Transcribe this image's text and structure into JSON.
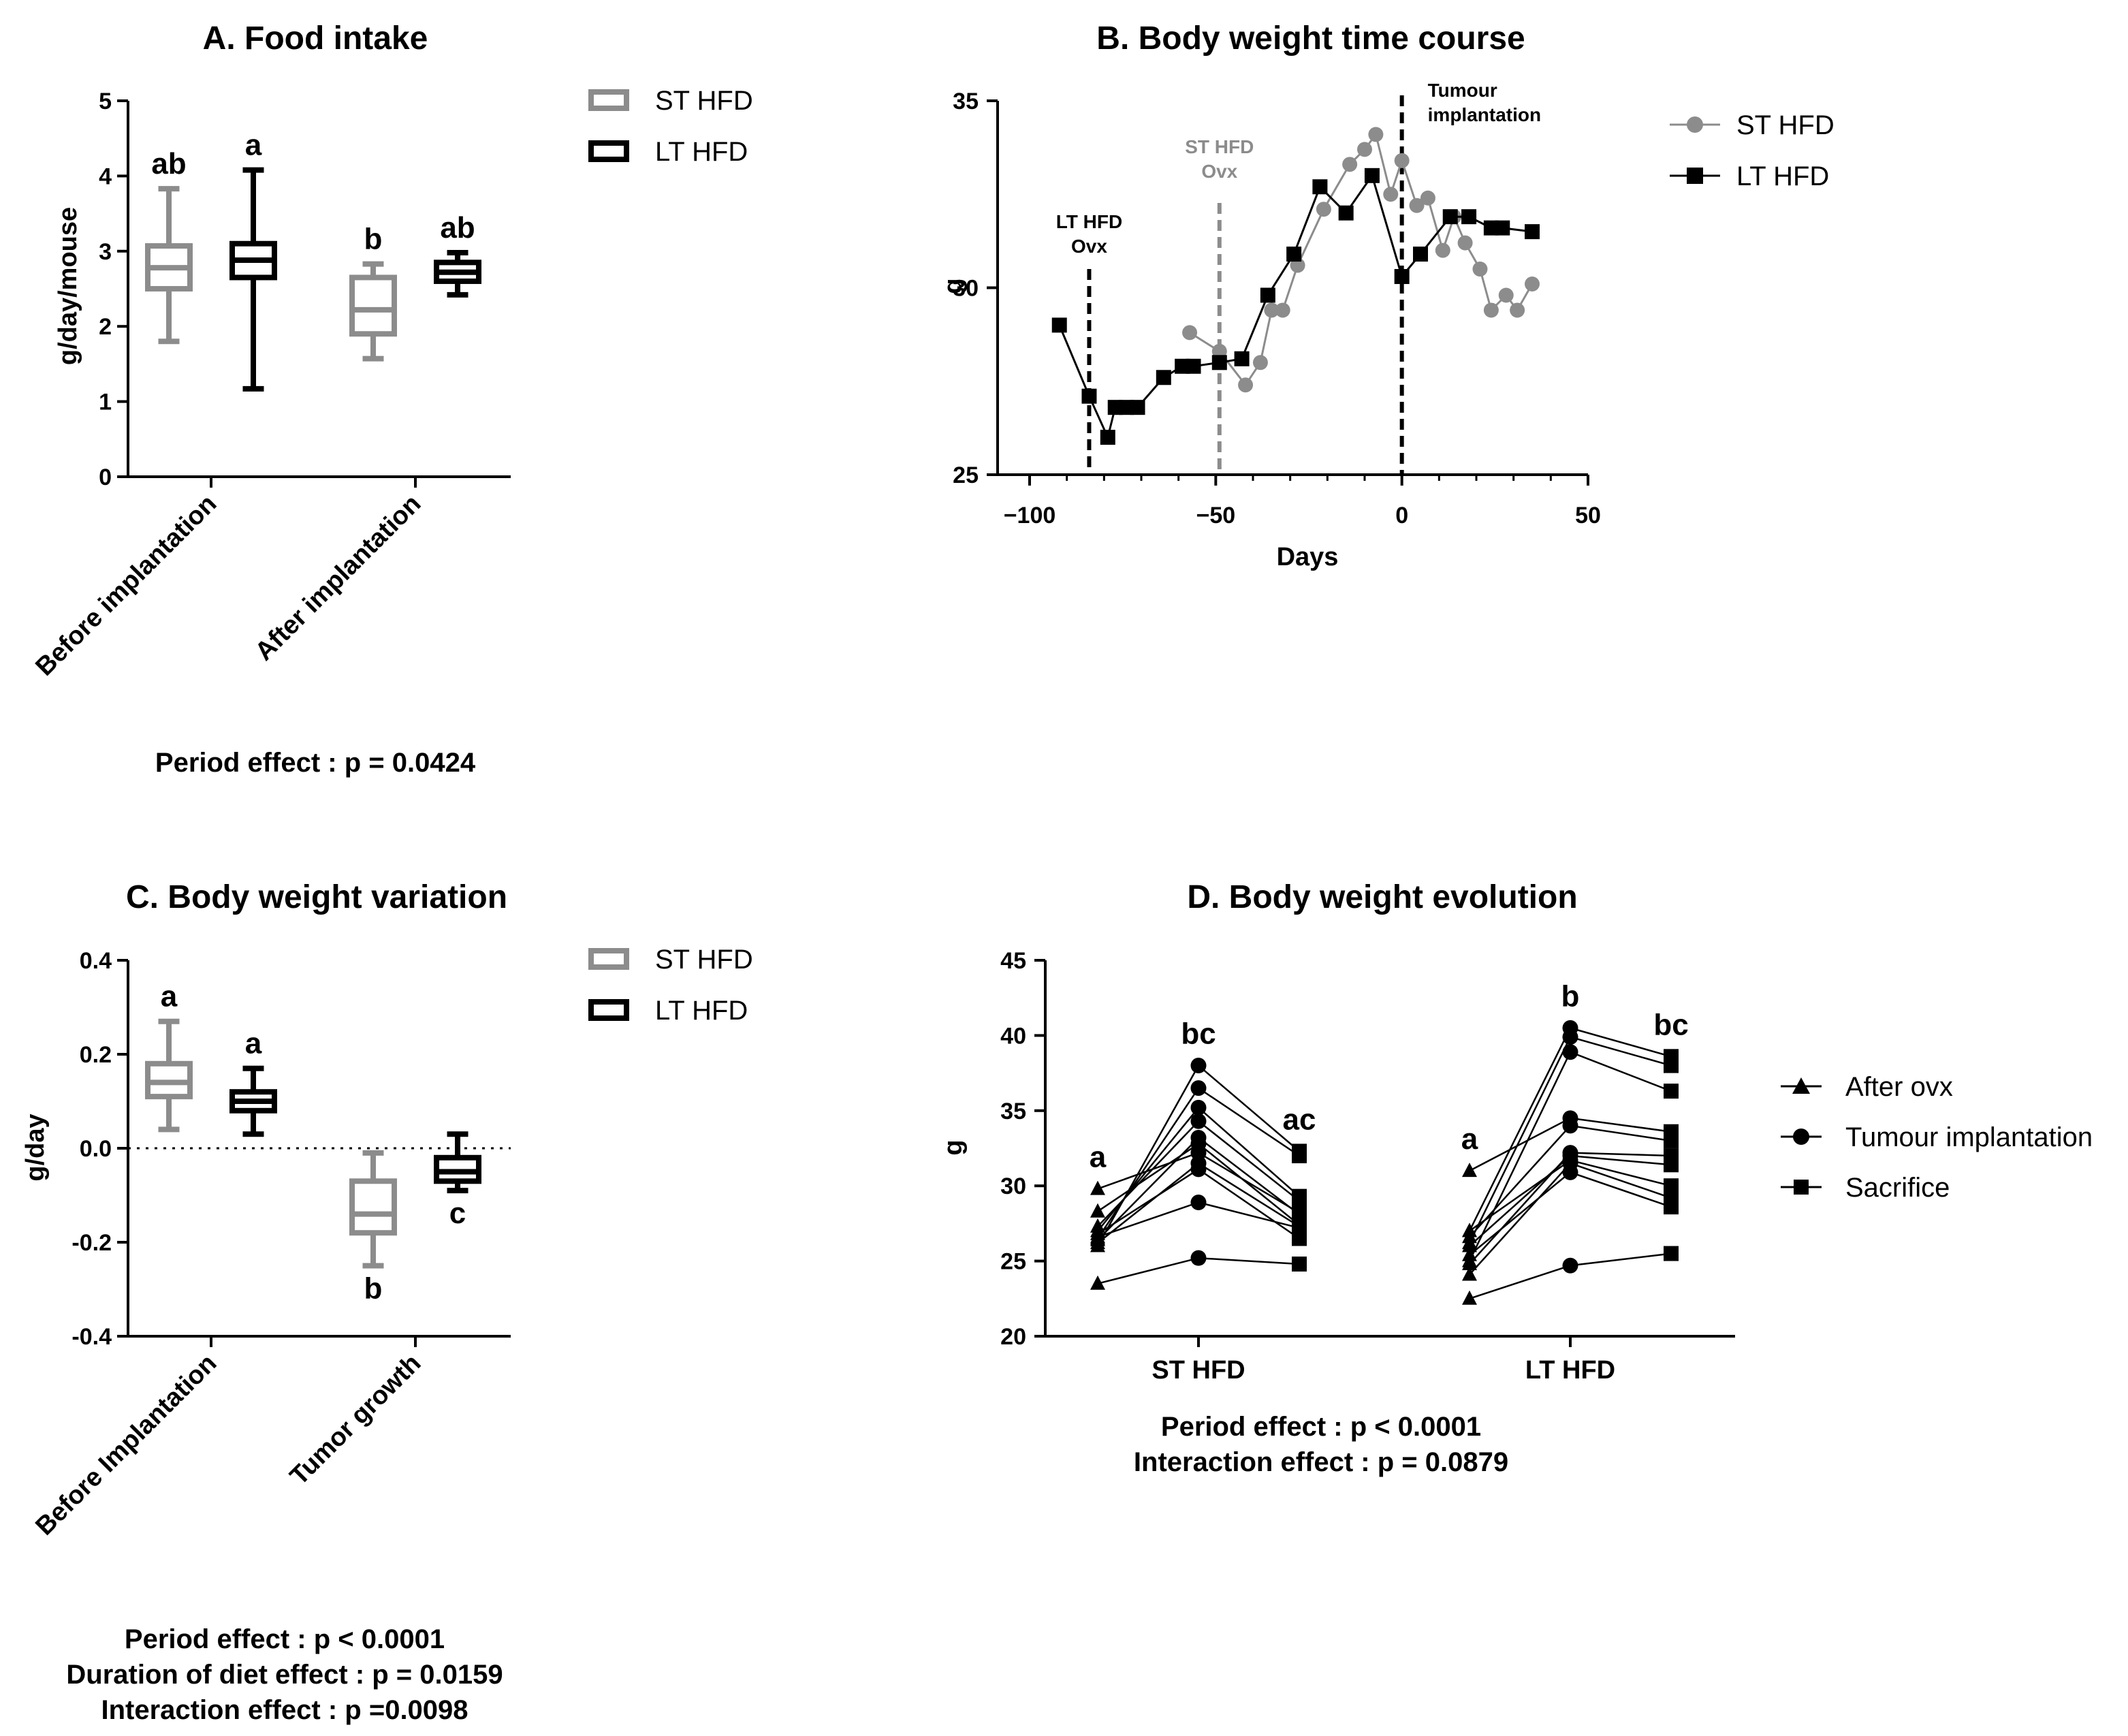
{
  "chart_data": [
    {
      "panel": "A",
      "type": "box",
      "title": "A. Food intake",
      "ylabel": "g/day/mouse",
      "ylim": [
        0,
        5
      ],
      "yticks": [
        "0",
        "1",
        "2",
        "3",
        "4",
        "5"
      ],
      "categories": [
        "Before implantation",
        "After implantation"
      ],
      "legend": [
        "ST HFD",
        "LT HFD"
      ],
      "colors": {
        "ST HFD": "#8c8c8c",
        "LT HFD": "#000000"
      },
      "boxes": [
        {
          "series": "ST HFD",
          "category": "Before implantation",
          "min": 1.8,
          "q1": 2.5,
          "median": 2.78,
          "q3": 3.07,
          "max": 3.83,
          "letter": "ab"
        },
        {
          "series": "LT HFD",
          "category": "Before implantation",
          "min": 1.17,
          "q1": 2.65,
          "median": 2.88,
          "q3": 3.1,
          "max": 4.08,
          "letter": "a"
        },
        {
          "series": "ST HFD",
          "category": "After implantation",
          "min": 1.57,
          "q1": 1.9,
          "median": 2.22,
          "q3": 2.65,
          "max": 2.83,
          "letter": "b"
        },
        {
          "series": "LT HFD",
          "category": "After implantation",
          "min": 2.42,
          "q1": 2.6,
          "median": 2.72,
          "q3": 2.85,
          "max": 2.98,
          "letter": "ab"
        }
      ],
      "footnote": [
        "Period effect : p = 0.0424"
      ]
    },
    {
      "panel": "B",
      "type": "line",
      "title": "B. Body weight time course",
      "xlabel": "Days",
      "ylabel": "g",
      "xlim": [
        -100,
        50
      ],
      "ylim": [
        25,
        35
      ],
      "xticks": [
        "−100",
        "−50",
        "0",
        "50"
      ],
      "yticks": [
        "25",
        "30",
        "35"
      ],
      "series": [
        {
          "name": "ST HFD",
          "color": "#8c8c8c",
          "marker": "circle",
          "points": [
            [
              -57,
              28.8
            ],
            [
              -49,
              28.3
            ],
            [
              -42,
              27.4
            ],
            [
              -38,
              28
            ],
            [
              -35,
              29.4
            ],
            [
              -32,
              29.4
            ],
            [
              -28,
              30.6
            ],
            [
              -21,
              32.1
            ],
            [
              -14,
              33.3
            ],
            [
              -10,
              33.7
            ],
            [
              -7,
              34.1
            ],
            [
              -3,
              32.5
            ],
            [
              0,
              33.4
            ],
            [
              4,
              32.2
            ],
            [
              7,
              32.4
            ],
            [
              11,
              31
            ],
            [
              14,
              31.9
            ],
            [
              17,
              31.2
            ],
            [
              21,
              30.5
            ],
            [
              24,
              29.4
            ],
            [
              28,
              29.8
            ],
            [
              31,
              29.4
            ],
            [
              35,
              30.1
            ]
          ]
        },
        {
          "name": "LT HFD",
          "color": "#000000",
          "marker": "square",
          "points": [
            [
              -92,
              29
            ],
            [
              -84,
              27.1
            ],
            [
              -79,
              26
            ],
            [
              -77,
              26.8
            ],
            [
              -74,
              26.8
            ],
            [
              -71,
              26.8
            ],
            [
              -64,
              27.6
            ],
            [
              -59,
              27.9
            ],
            [
              -56,
              27.9
            ],
            [
              -49,
              28
            ],
            [
              -43,
              28.1
            ],
            [
              -36,
              29.8
            ],
            [
              -29,
              30.9
            ],
            [
              -22,
              32.7
            ],
            [
              -15,
              32
            ],
            [
              -8,
              33
            ],
            [
              0,
              30.3
            ],
            [
              5,
              30.9
            ],
            [
              13,
              31.9
            ],
            [
              18,
              31.9
            ],
            [
              24,
              31.6
            ],
            [
              27,
              31.6
            ],
            [
              35,
              31.5
            ]
          ]
        }
      ],
      "vlines": [
        {
          "x": -84,
          "color": "#000000",
          "label": [
            "LT HFD",
            "Ovx"
          ]
        },
        {
          "x": -49,
          "color": "#8c8c8c",
          "label": [
            "ST HFD",
            "Ovx"
          ]
        },
        {
          "x": 0,
          "color": "#000000",
          "label": [
            "Tumour",
            "implantation"
          ]
        }
      ],
      "legend": [
        "ST HFD",
        "LT HFD"
      ]
    },
    {
      "panel": "C",
      "type": "box",
      "title": "C. Body weight variation",
      "ylabel": "g/day",
      "ylim": [
        -0.4,
        0.4
      ],
      "yticks": [
        "-0.4",
        "-0.2",
        "0.0",
        "0.2",
        "0.4"
      ],
      "categories": [
        "Before Implantation",
        "Tumor growth"
      ],
      "legend": [
        "ST HFD",
        "LT HFD"
      ],
      "colors": {
        "ST HFD": "#8c8c8c",
        "LT HFD": "#000000"
      },
      "reference_line": 0,
      "boxes": [
        {
          "series": "ST HFD",
          "category": "Before Implantation",
          "min": 0.04,
          "q1": 0.11,
          "median": 0.14,
          "q3": 0.18,
          "max": 0.27,
          "letter": "a"
        },
        {
          "series": "LT HFD",
          "category": "Before Implantation",
          "min": 0.03,
          "q1": 0.08,
          "median": 0.1,
          "q3": 0.12,
          "max": 0.17,
          "letter": "a"
        },
        {
          "series": "ST HFD",
          "category": "Tumor growth",
          "min": -0.25,
          "q1": -0.18,
          "median": -0.14,
          "q3": -0.07,
          "max": -0.01,
          "letter": "b"
        },
        {
          "series": "LT HFD",
          "category": "Tumor growth",
          "min": -0.09,
          "q1": -0.07,
          "median": -0.05,
          "q3": -0.02,
          "max": 0.03,
          "letter": "c"
        }
      ],
      "footnote": [
        "Period effect : p < 0.0001",
        "Duration of diet effect : p = 0.0159",
        "Interaction effect : p =0.0098"
      ]
    },
    {
      "panel": "D",
      "type": "paired-dot",
      "title": "D. Body weight evolution",
      "ylabel": "g",
      "ylim": [
        20,
        45
      ],
      "yticks": [
        "20",
        "25",
        "30",
        "35",
        "40",
        "45"
      ],
      "categories": [
        "ST HFD",
        "LT HFD"
      ],
      "legend": [
        {
          "name": "After ovx",
          "marker": "triangle"
        },
        {
          "name": "Tumour implantation",
          "marker": "circle"
        },
        {
          "name": "Sacrifice",
          "marker": "square"
        }
      ],
      "groups": [
        {
          "name": "ST HFD",
          "letters": [
            "a",
            "bc",
            "ac"
          ],
          "mice": [
            [
              26,
              38,
              32.3
            ],
            [
              26.5,
              36.5,
              32
            ],
            [
              27,
              35.2,
              29.3
            ],
            [
              27.3,
              34.3,
              29
            ],
            [
              26.4,
              33.2,
              28.1
            ],
            [
              28.3,
              32.8,
              27.4
            ],
            [
              29.8,
              32.2,
              28.2
            ],
            [
              26.2,
              31.5,
              27.3
            ],
            [
              26.8,
              31.1,
              26.5
            ],
            [
              26.6,
              28.9,
              27.2
            ],
            [
              23.5,
              25.2,
              24.8
            ]
          ]
        },
        {
          "name": "LT HFD",
          "letters": [
            "a",
            "b",
            "bc"
          ],
          "mice": [
            [
              27,
              40.5,
              38.6
            ],
            [
              26.2,
              39.9,
              38
            ],
            [
              25,
              38.9,
              36.3
            ],
            [
              31,
              34.5,
              33.6
            ],
            [
              26.6,
              34,
              33
            ],
            [
              24.8,
              32.2,
              32
            ],
            [
              26,
              32,
              31.4
            ],
            [
              27,
              31.7,
              30
            ],
            [
              24.1,
              31.5,
              29.2
            ],
            [
              25.4,
              30.9,
              28.6
            ],
            [
              22.5,
              24.7,
              25.5
            ]
          ]
        }
      ],
      "footnote": [
        "Period effect : p < 0.0001",
        "Interaction effect : p = 0.0879"
      ]
    }
  ]
}
